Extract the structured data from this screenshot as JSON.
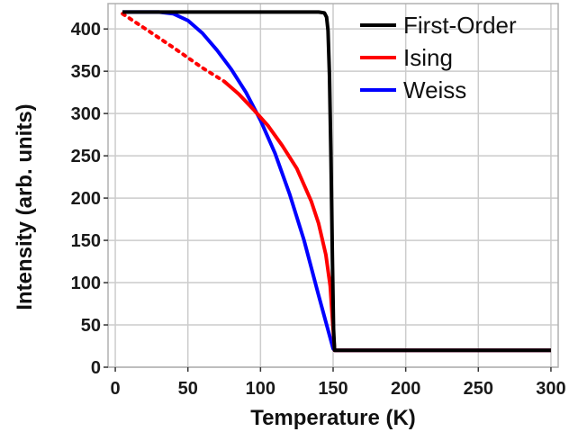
{
  "chart_data": {
    "type": "line",
    "title": "",
    "xlabel": "Temperature (K)",
    "ylabel": "Intensity (arb. units)",
    "xlim": [
      -5,
      305
    ],
    "ylim": [
      0,
      430
    ],
    "xticks": [
      0,
      50,
      100,
      150,
      200,
      250,
      300
    ],
    "yticks": [
      0,
      50,
      100,
      150,
      200,
      250,
      300,
      350,
      400
    ],
    "grid": true,
    "legend_position": "top-right",
    "series": [
      {
        "name": "First-Order",
        "color": "#000000",
        "style": "solid",
        "x": [
          5,
          140,
          144,
          145.5,
          146.5,
          147.5,
          148.5,
          149.5,
          150.3,
          151,
          200,
          250,
          300
        ],
        "y": [
          420,
          420,
          419,
          414,
          398,
          345,
          250,
          130,
          45,
          20,
          20,
          20,
          20
        ]
      },
      {
        "name": "Ising",
        "color": "#ff0000",
        "style": "dotted-then-solid",
        "dotted_until_x": 75,
        "x": [
          5,
          20,
          40,
          60,
          75,
          85,
          95,
          105,
          115,
          125,
          135,
          140,
          145,
          148,
          150,
          151,
          200,
          250,
          300
        ],
        "y": [
          418,
          401,
          378,
          354,
          338,
          323,
          305,
          286,
          262,
          235,
          196,
          170,
          133,
          96,
          45,
          20,
          20,
          20,
          20
        ]
      },
      {
        "name": "Weiss",
        "color": "#0000ff",
        "style": "solid",
        "x": [
          5,
          30,
          40,
          50,
          60,
          70,
          80,
          90,
          100,
          110,
          120,
          130,
          140,
          150,
          151,
          200,
          250,
          300
        ],
        "y": [
          420,
          420,
          418,
          410,
          395,
          375,
          352,
          325,
          292,
          253,
          205,
          150,
          85,
          22,
          20,
          20,
          20,
          20
        ]
      }
    ]
  }
}
